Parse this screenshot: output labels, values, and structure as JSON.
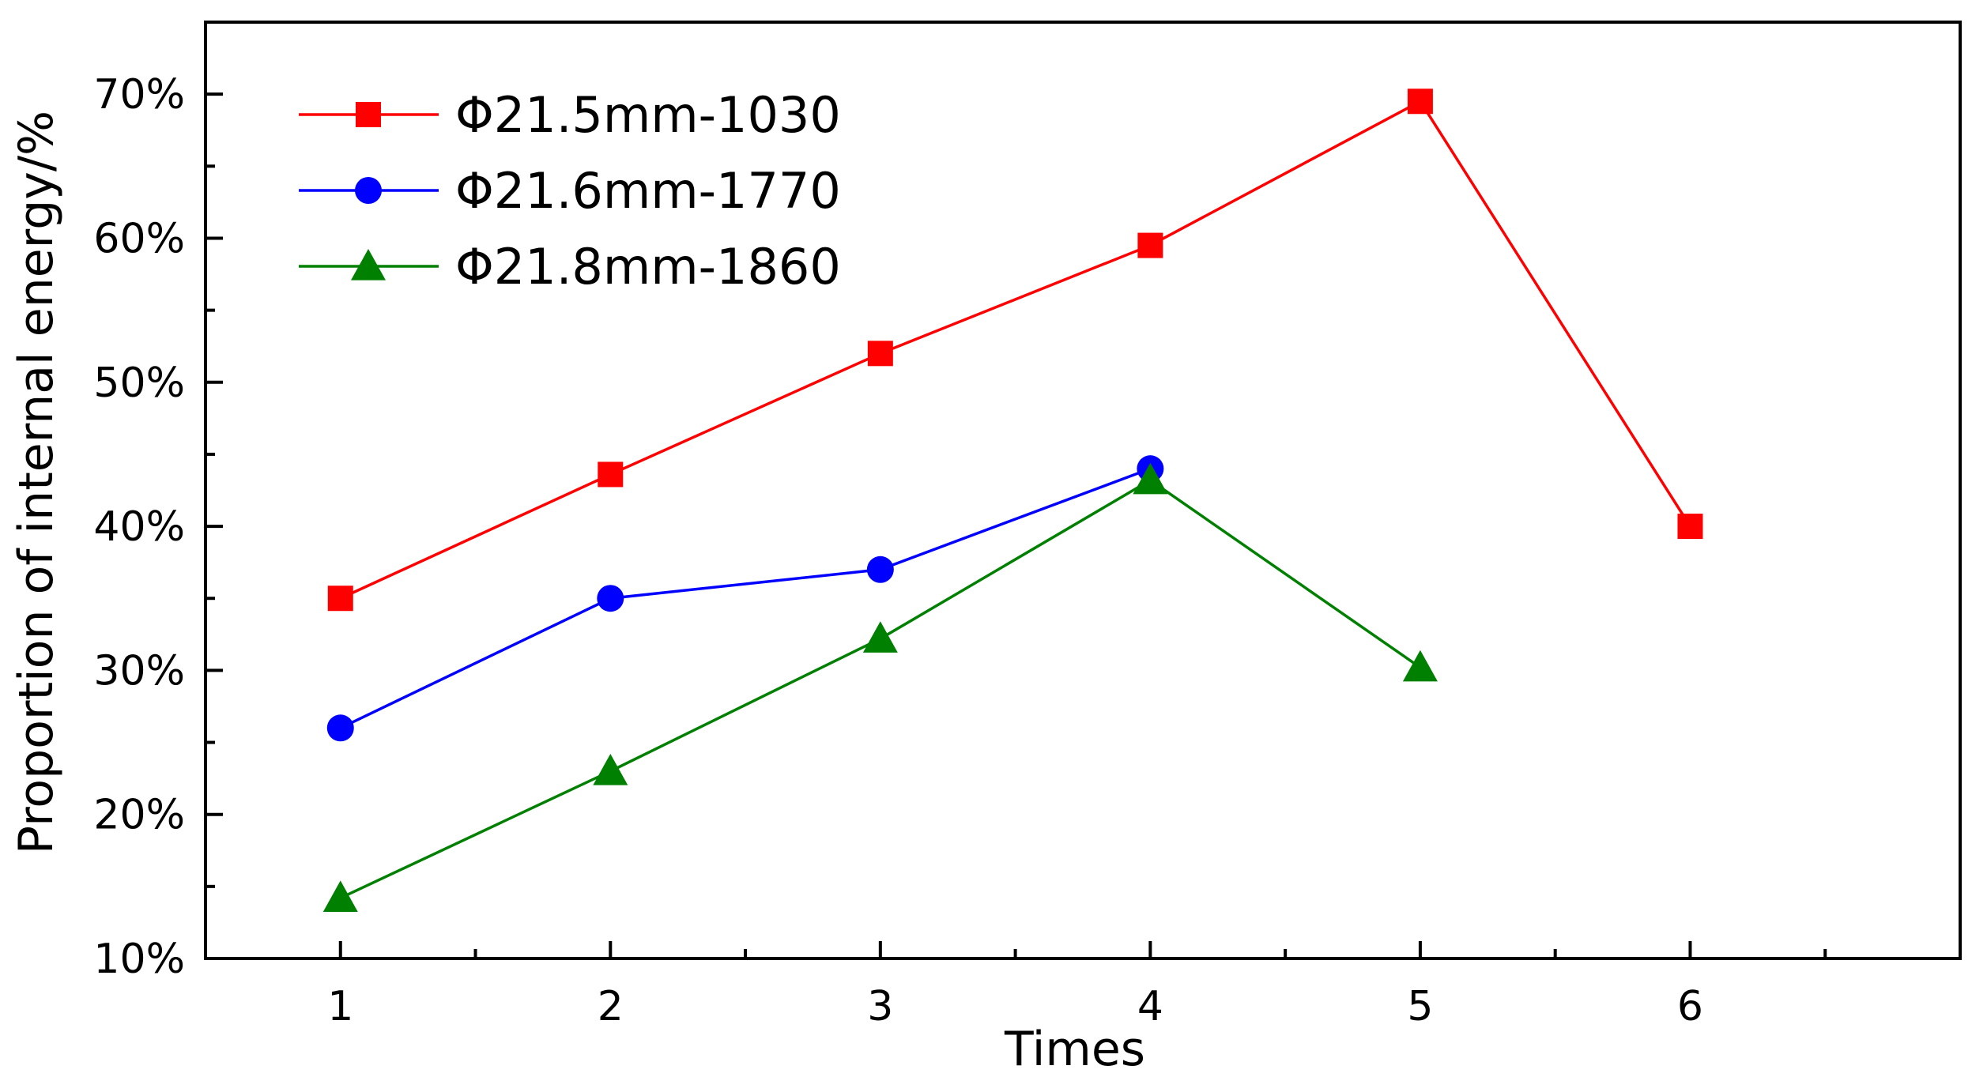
{
  "chart_data": {
    "type": "line",
    "title": "",
    "xlabel": "Times",
    "ylabel": "Proportion of internal energy/%",
    "x_ticks": [
      "1",
      "2",
      "3",
      "4",
      "5",
      "6"
    ],
    "y_ticks": [
      "10%",
      "20%",
      "30%",
      "40%",
      "50%",
      "60%",
      "70%"
    ],
    "y_tick_values": [
      10,
      20,
      30,
      40,
      50,
      60,
      70
    ],
    "xlim": [
      0.5,
      7.0
    ],
    "ylim": [
      10,
      75
    ],
    "grid": false,
    "legend_position": "top-left",
    "series": [
      {
        "name": "Φ21.5mm-1030",
        "color": "#ff0000",
        "marker": "square",
        "x": [
          1,
          2,
          3,
          4,
          5,
          6
        ],
        "values": [
          35,
          43.6,
          52,
          59.5,
          69.5,
          40
        ]
      },
      {
        "name": "Φ21.6mm-1770",
        "color": "#0000ff",
        "marker": "circle",
        "x": [
          1,
          2,
          3,
          4
        ],
        "values": [
          26,
          35,
          37,
          44
        ]
      },
      {
        "name": "Φ21.8mm-1860",
        "color": "#008000",
        "marker": "triangle",
        "x": [
          1,
          2,
          3,
          4,
          5
        ],
        "values": [
          14.2,
          23,
          32.2,
          43.2,
          30.2
        ]
      }
    ]
  }
}
